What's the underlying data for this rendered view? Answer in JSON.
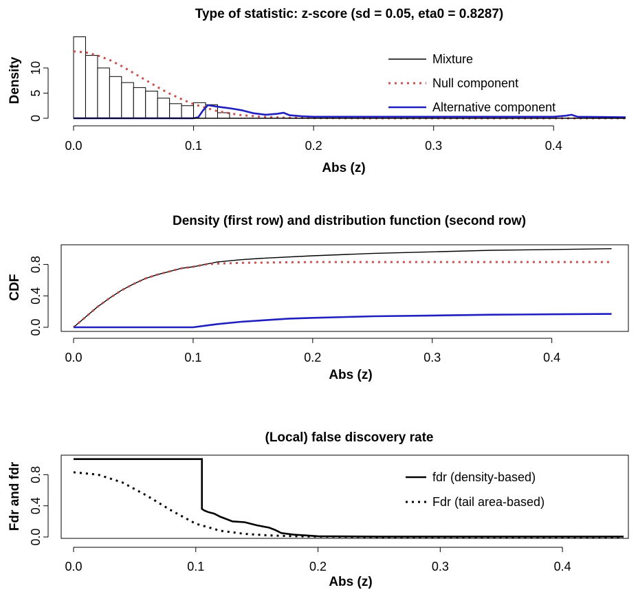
{
  "chart_data": [
    {
      "type": "bar",
      "title": "Type of statistic: z-score (sd = 0.05, eta0 = 0.8287)",
      "xlabel": "Abs (z)",
      "ylabel": "Density",
      "xlim": [
        0,
        0.46
      ],
      "ylim": [
        0,
        16
      ],
      "x_ticks": [
        "0.0",
        "0.1",
        "0.2",
        "0.3",
        "0.4"
      ],
      "y_ticks": [
        "0",
        "5",
        "10"
      ],
      "legend": {
        "position": "top-right",
        "entries": [
          "Mixture",
          "Null component",
          "Alternative component"
        ]
      },
      "histogram": {
        "bin_edges": [
          0,
          0.01,
          0.02,
          0.03,
          0.04,
          0.05,
          0.06,
          0.07,
          0.08,
          0.09,
          0.1,
          0.11,
          0.12,
          0.13
        ],
        "counts": [
          16.2,
          12.5,
          10.0,
          8.3,
          7.1,
          6.1,
          5.4,
          4.0,
          2.9,
          2.5,
          3.1,
          2.7,
          1.1
        ]
      },
      "series": [
        {
          "name": "Null component",
          "color": "#c8504f",
          "style": "dotted",
          "x": [
            0,
            0.01,
            0.02,
            0.03,
            0.04,
            0.05,
            0.06,
            0.07,
            0.08,
            0.09,
            0.1,
            0.12,
            0.14,
            0.16,
            0.18,
            0.2,
            0.25,
            0.3,
            0.35,
            0.4,
            0.46
          ],
          "y": [
            13.3,
            13.1,
            12.5,
            11.6,
            10.4,
            9.0,
            7.6,
            6.2,
            4.9,
            3.8,
            2.8,
            1.4,
            0.6,
            0.25,
            0.1,
            0.04,
            0.0,
            0.0,
            0.0,
            0.0,
            0.0
          ]
        },
        {
          "name": "Alternative component",
          "color": "#1f1fbf",
          "style": "solid",
          "x": [
            0,
            0.1,
            0.104,
            0.108,
            0.112,
            0.12,
            0.13,
            0.14,
            0.15,
            0.16,
            0.17,
            0.175,
            0.18,
            0.19,
            0.2,
            0.25,
            0.3,
            0.35,
            0.4,
            0.41,
            0.415,
            0.42,
            0.46
          ],
          "y": [
            0,
            0,
            0.2,
            1.6,
            2.6,
            2.3,
            2.0,
            1.6,
            1.0,
            0.7,
            0.9,
            1.1,
            0.6,
            0.4,
            0.3,
            0.3,
            0.3,
            0.3,
            0.3,
            0.5,
            0.7,
            0.3,
            0.2
          ]
        },
        {
          "name": "Mixture",
          "color": "#000000",
          "style": "solid",
          "x": [
            0,
            0.1,
            0.2,
            0.46
          ],
          "y": [
            0,
            0,
            0,
            0
          ]
        }
      ]
    },
    {
      "type": "line",
      "title": "Density (first row) and distribution function (second row)",
      "xlabel": "Abs (z)",
      "ylabel": "CDF",
      "xlim": [
        0,
        0.46
      ],
      "ylim": [
        0,
        1.05
      ],
      "x_ticks": [
        "0.0",
        "0.1",
        "0.2",
        "0.3",
        "0.4"
      ],
      "y_ticks": [
        "0.0",
        "0.4",
        "0.8"
      ],
      "series": [
        {
          "name": "Mixture",
          "color": "#000000",
          "style": "solid",
          "x": [
            0,
            0.01,
            0.02,
            0.03,
            0.04,
            0.05,
            0.06,
            0.07,
            0.08,
            0.09,
            0.1,
            0.11,
            0.12,
            0.14,
            0.16,
            0.2,
            0.25,
            0.3,
            0.35,
            0.4,
            0.45
          ],
          "y": [
            0,
            0.13,
            0.26,
            0.37,
            0.47,
            0.55,
            0.62,
            0.67,
            0.71,
            0.75,
            0.77,
            0.8,
            0.83,
            0.86,
            0.88,
            0.91,
            0.94,
            0.96,
            0.98,
            0.99,
            1.0
          ]
        },
        {
          "name": "Null component",
          "color": "#c8504f",
          "style": "dotted",
          "x": [
            0,
            0.01,
            0.02,
            0.03,
            0.04,
            0.05,
            0.06,
            0.07,
            0.08,
            0.09,
            0.1,
            0.11,
            0.12,
            0.14,
            0.2,
            0.3,
            0.4,
            0.45
          ],
          "y": [
            0,
            0.13,
            0.26,
            0.37,
            0.47,
            0.55,
            0.62,
            0.67,
            0.71,
            0.75,
            0.77,
            0.8,
            0.81,
            0.82,
            0.83,
            0.83,
            0.83,
            0.83
          ]
        },
        {
          "name": "Alternative component",
          "color": "#1f1fbf",
          "style": "solid",
          "x": [
            0,
            0.1,
            0.11,
            0.12,
            0.14,
            0.16,
            0.18,
            0.2,
            0.25,
            0.3,
            0.35,
            0.4,
            0.45
          ],
          "y": [
            0,
            0,
            0.02,
            0.04,
            0.07,
            0.09,
            0.11,
            0.12,
            0.14,
            0.15,
            0.16,
            0.165,
            0.17
          ]
        }
      ]
    },
    {
      "type": "line",
      "title": "(Local) false discovery rate",
      "xlabel": "Abs (z)",
      "ylabel": "Fdr and fdr",
      "xlim": [
        0,
        0.45
      ],
      "ylim": [
        0,
        1.05
      ],
      "x_ticks": [
        "0.0",
        "0.1",
        "0.2",
        "0.3",
        "0.4"
      ],
      "y_ticks": [
        "0.0",
        "0.4",
        "0.8"
      ],
      "legend": {
        "position": "right",
        "entries": [
          "fdr (density-based)",
          "Fdr (tail area-based)"
        ]
      },
      "series": [
        {
          "name": "fdr (density-based)",
          "color": "#000000",
          "style": "solid",
          "x": [
            0,
            0.105,
            0.105,
            0.107,
            0.11,
            0.115,
            0.12,
            0.125,
            0.13,
            0.14,
            0.15,
            0.16,
            0.165,
            0.17,
            0.18,
            0.19,
            0.2,
            0.25,
            0.3,
            0.35,
            0.4,
            0.45
          ],
          "y": [
            1.0,
            1.0,
            0.36,
            0.34,
            0.32,
            0.3,
            0.26,
            0.23,
            0.2,
            0.19,
            0.15,
            0.12,
            0.09,
            0.05,
            0.03,
            0.02,
            0.01,
            0.005,
            0.005,
            0.005,
            0.005,
            0.005
          ]
        },
        {
          "name": "Fdr (tail area-based)",
          "color": "#000000",
          "style": "dotted",
          "x": [
            0,
            0.02,
            0.04,
            0.06,
            0.08,
            0.1,
            0.12,
            0.14,
            0.16,
            0.18,
            0.2,
            0.25,
            0.3,
            0.35,
            0.4,
            0.45
          ],
          "y": [
            0.83,
            0.8,
            0.7,
            0.53,
            0.34,
            0.17,
            0.08,
            0.04,
            0.02,
            0.01,
            0.005,
            0.0,
            0.0,
            0.0,
            0.0,
            0.0
          ]
        }
      ]
    }
  ]
}
